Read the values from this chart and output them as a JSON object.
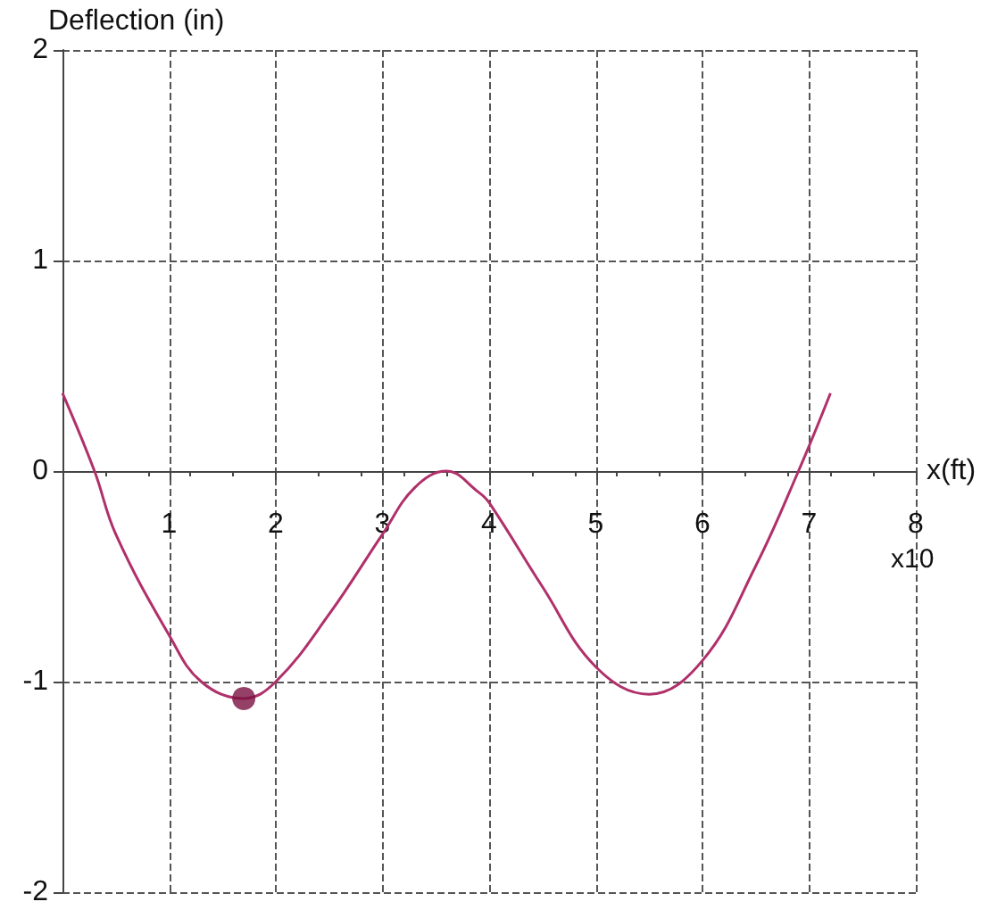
{
  "chart_data": {
    "type": "line",
    "ylabel": "Deflection (in)",
    "xlabel": "x(ft)",
    "annotations": [
      "x10"
    ],
    "x": [
      0,
      0.3,
      0.5,
      1.0,
      1.3,
      1.7,
      2.0,
      2.5,
      3.0,
      3.3,
      3.6,
      3.9,
      4.0,
      4.5,
      5.0,
      5.5,
      6.0,
      6.5,
      6.9,
      7.2
    ],
    "series": [
      {
        "color": "#b0306a",
        "values": [
          0.37,
          0,
          -0.3,
          -0.78,
          -1.0,
          -1.08,
          -1.0,
          -0.68,
          -0.3,
          -0.08,
          0,
          -0.1,
          -0.15,
          -0.55,
          -0.93,
          -1.06,
          -0.9,
          -0.45,
          0,
          0.37
        ],
        "marker": "none"
      },
      {
        "type": "scatter",
        "color": "#7a1040",
        "x": [
          1.7
        ],
        "values": [
          -1.08
        ],
        "marker": "circle"
      }
    ],
    "xlim": [
      0,
      8
    ],
    "xticks": [
      1,
      2,
      3,
      4,
      5,
      6,
      7,
      8
    ],
    "ylim": [
      -2,
      2
    ],
    "yticks": [
      -2,
      -1,
      0,
      1,
      2
    ],
    "grid": true,
    "line_style": "solid"
  }
}
